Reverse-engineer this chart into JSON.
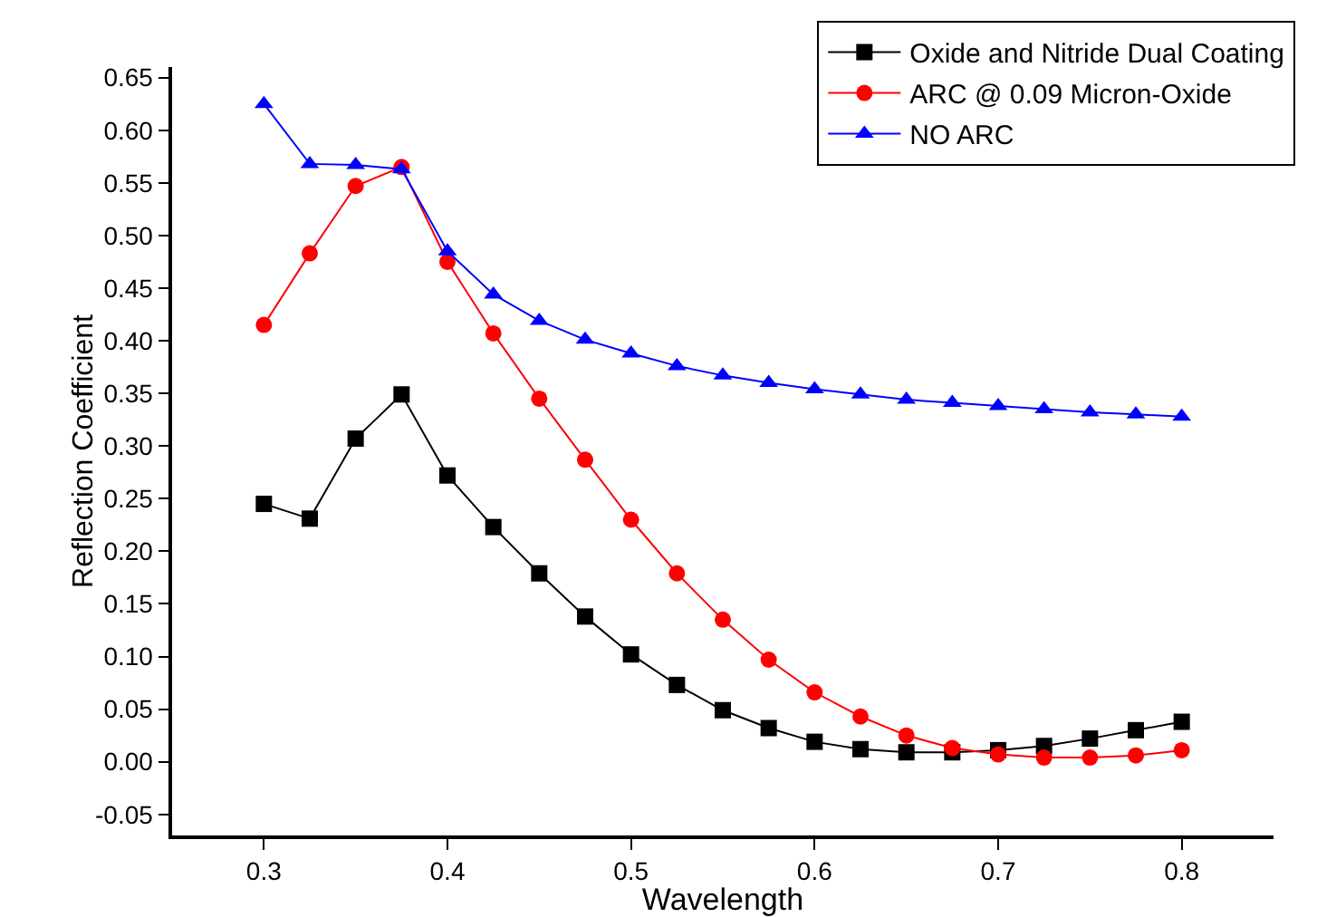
{
  "chart_data": {
    "type": "line",
    "xlabel": "Wavelength",
    "ylabel": "Reflection Coefficient",
    "x": [
      0.3,
      0.325,
      0.35,
      0.375,
      0.4,
      0.425,
      0.45,
      0.475,
      0.5,
      0.525,
      0.55,
      0.575,
      0.6,
      0.625,
      0.65,
      0.675,
      0.7,
      0.725,
      0.75,
      0.775,
      0.8
    ],
    "series": [
      {
        "name": "Oxide and Nitride Dual Coating",
        "color": "#000000",
        "marker": "square",
        "values": [
          0.245,
          0.231,
          0.307,
          0.349,
          0.272,
          0.223,
          0.179,
          0.138,
          0.102,
          0.073,
          0.049,
          0.032,
          0.019,
          0.012,
          0.009,
          0.009,
          0.011,
          0.015,
          0.022,
          0.03,
          0.038
        ]
      },
      {
        "name": "ARC @ 0.09 Micron-Oxide",
        "color": "#ff0000",
        "marker": "circle",
        "values": [
          0.415,
          0.483,
          0.547,
          0.565,
          0.475,
          0.407,
          0.345,
          0.287,
          0.23,
          0.179,
          0.135,
          0.097,
          0.066,
          0.043,
          0.025,
          0.013,
          0.007,
          0.004,
          0.004,
          0.006,
          0.011
        ]
      },
      {
        "name": "NO ARC",
        "color": "#0000ff",
        "marker": "triangle",
        "values": [
          0.625,
          0.568,
          0.567,
          0.563,
          0.485,
          0.444,
          0.419,
          0.401,
          0.388,
          0.376,
          0.367,
          0.36,
          0.354,
          0.349,
          0.344,
          0.341,
          0.338,
          0.335,
          0.332,
          0.33,
          0.328
        ]
      }
    ],
    "xlim": [
      0.25,
      0.85
    ],
    "xticks": [
      0.3,
      0.4,
      0.5,
      0.6,
      0.7,
      0.8
    ],
    "ylim": [
      -0.07,
      0.66
    ],
    "yticks": [
      {
        "value": -0.05,
        "label": "-0.05"
      },
      {
        "value": 0,
        "label": "0.00"
      },
      {
        "value": 0.05,
        "label": "0.05"
      },
      {
        "value": 0.1,
        "label": "0.10"
      },
      {
        "value": 0.15,
        "label": "0.15"
      },
      {
        "value": 0.2,
        "label": "0.20"
      },
      {
        "value": 0.25,
        "label": "0.25"
      },
      {
        "value": 0.3,
        "label": "0.30"
      },
      {
        "value": 0.35,
        "label": "0.35"
      },
      {
        "value": 0.4,
        "label": "0.40"
      },
      {
        "value": 0.45,
        "label": "0.45"
      },
      {
        "value": 0.5,
        "label": "0.50"
      },
      {
        "value": 0.55,
        "label": "0.55"
      },
      {
        "value": 0.6,
        "label": "0.60"
      },
      {
        "value": 0.65,
        "label": "0.65"
      }
    ],
    "grid": false,
    "legend": "top right"
  }
}
